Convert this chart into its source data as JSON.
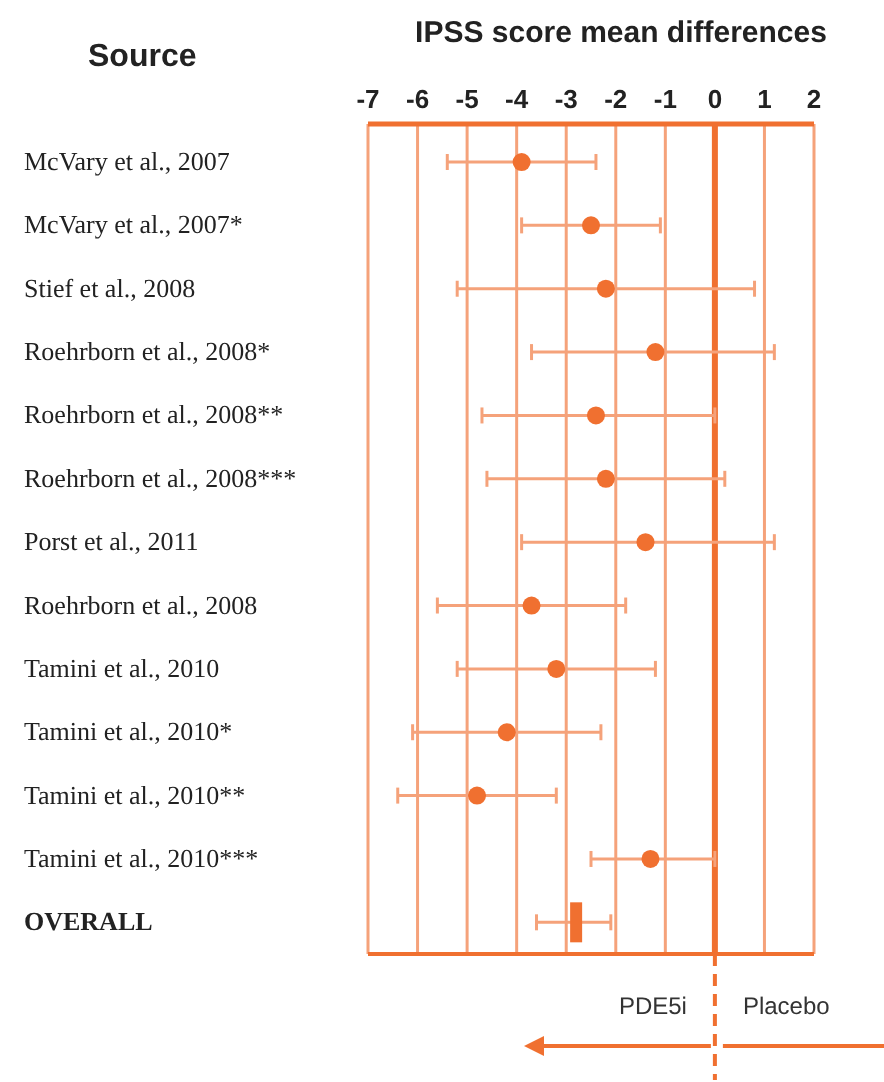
{
  "chart_data": {
    "type": "scatter",
    "orientation": "horizontal",
    "xlabel": "IPSS score  mean differences",
    "ylabel": "Source",
    "categories": [
      "McVary et al., 2007",
      "McVary et al., 2007*",
      "Stief et al., 2008",
      "Roehrborn  et al., 2008*",
      "Roehrborn et al., 2008**",
      "Roehrborn et al., 2008***",
      "Porst et al., 2011",
      "Roehrborn et al., 2008",
      "Tamini et al., 2010",
      "Tamini et al., 2010*",
      "Tamini et al., 2010**",
      "Tamini et al., 2010***",
      "OVERALL"
    ],
    "series": [
      {
        "color": "#f07030",
        "marker": "circle",
        "values": [
          -3.9,
          -2.5,
          -2.2,
          -1.2,
          -2.4,
          -2.2,
          -1.4,
          -3.7,
          -3.2,
          -4.2,
          -4.8,
          -1.3,
          null
        ],
        "errors": [
          [
            -5.4,
            -2.4
          ],
          [
            -3.9,
            -1.1
          ],
          [
            -5.2,
            0.8
          ],
          [
            -3.7,
            1.2
          ],
          [
            -4.7,
            0
          ],
          [
            -4.6,
            0.2
          ],
          [
            -3.9,
            1.2
          ],
          [
            -5.6,
            -1.8
          ],
          [
            -5.2,
            -1.2
          ],
          [
            -6.1,
            -2.3
          ],
          [
            -6.4,
            -3.2
          ],
          [
            -2.5,
            0
          ],
          null
        ]
      },
      {
        "color": "#f07030",
        "marker": "square",
        "values": [
          null,
          null,
          null,
          null,
          null,
          null,
          null,
          null,
          null,
          null,
          null,
          null,
          -2.8
        ],
        "errors": [
          null,
          null,
          null,
          null,
          null,
          null,
          null,
          null,
          null,
          null,
          null,
          null,
          [
            -3.6,
            -2.1
          ]
        ]
      }
    ],
    "xlim": [
      -7,
      2
    ],
    "xticks": [
      -7,
      -6,
      -5,
      -4,
      -3,
      -2,
      -1,
      0,
      1,
      2
    ],
    "grid": "x",
    "ref_lines": [
      {
        "axis": "x",
        "value": 0,
        "color": "#f07030"
      }
    ],
    "annotations": [
      "PDE5i",
      "Placebo"
    ]
  }
}
